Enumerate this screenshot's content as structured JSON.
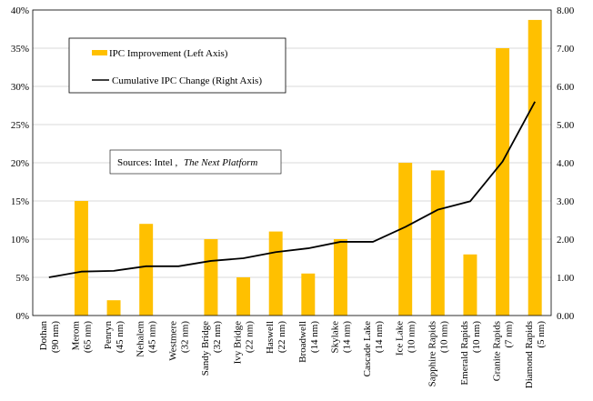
{
  "chart_data": {
    "type": "bar",
    "categories": [
      [
        "Dothan",
        "(90 nm)"
      ],
      [
        "Merom",
        "(65 nm)"
      ],
      [
        "Penryn",
        "(45 nm)"
      ],
      [
        "Nehalem",
        "(45 nm)"
      ],
      [
        "Westmere",
        "(32 nm)"
      ],
      [
        "Sandy Bridge",
        "(32 nm)"
      ],
      [
        "Ivy Bridge",
        "(22 nm)"
      ],
      [
        "Haswell",
        "(22 nm)"
      ],
      [
        "Broadwell",
        "(14 nm)"
      ],
      [
        "Skylake",
        "(14 nm)"
      ],
      [
        "Cascade Lake",
        "(14 nm)"
      ],
      [
        "Ice Lake",
        "(10 nm)"
      ],
      [
        "Sapphire Rapids",
        "(10 nm)"
      ],
      [
        "Emerald Rapids",
        "(10 nm)"
      ],
      [
        "Granite Rapids",
        "(7 nm)"
      ],
      [
        "Diamond Rapids",
        "(5 nm)"
      ]
    ],
    "series": [
      {
        "name": "IPC Improvement (Left Axis)",
        "kind": "bar",
        "axis": "left",
        "color": "#FFC000",
        "values": [
          0,
          15,
          2,
          12,
          0,
          10,
          5,
          11,
          5.5,
          10,
          0,
          20,
          19,
          8,
          35,
          38.7
        ]
      },
      {
        "name": "Cumulative IPC Change (Right Axis)",
        "kind": "line",
        "axis": "right",
        "color": "#000000",
        "values": [
          1.0,
          1.15,
          1.17,
          1.29,
          1.29,
          1.43,
          1.5,
          1.66,
          1.76,
          1.93,
          1.93,
          2.32,
          2.77,
          2.99,
          4.03,
          5.6
        ]
      }
    ],
    "yaxis_left": {
      "min": 0,
      "max": 40,
      "ticks": [
        "0%",
        "5%",
        "10%",
        "15%",
        "20%",
        "25%",
        "30%",
        "35%",
        "40%"
      ]
    },
    "yaxis_right": {
      "min": 0,
      "max": 8,
      "ticks": [
        "0.00",
        "1.00",
        "2.00",
        "3.00",
        "4.00",
        "5.00",
        "6.00",
        "7.00",
        "8.00"
      ]
    },
    "grid": true,
    "legend": {
      "placement": "upper-left",
      "items": [
        "IPC Improvement (Left Axis)",
        "Cumulative IPC Change (Right Axis)"
      ]
    },
    "annotation": {
      "prefix": "Sources: Intel ,",
      "italic": "The Next Platform"
    }
  }
}
